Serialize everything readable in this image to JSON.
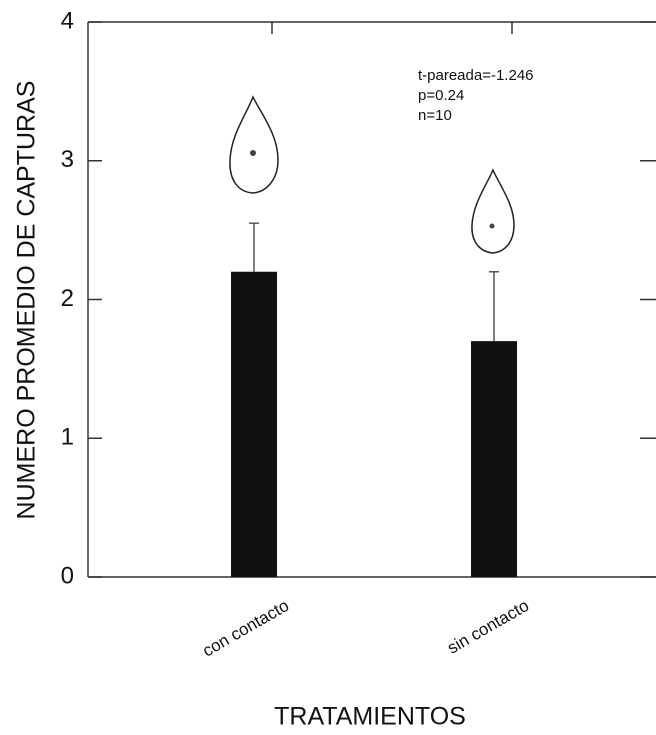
{
  "chart_data": {
    "type": "bar",
    "categories": [
      "con contacto",
      "sin contacto"
    ],
    "values": [
      2.2,
      1.7
    ],
    "errors": [
      0.35,
      0.5
    ],
    "color": "#111111",
    "ylim": [
      0,
      4
    ],
    "yticks": [
      0,
      1,
      2,
      3,
      4
    ],
    "xlabel": "TRATAMIENTOS",
    "ylabel": "NUMERO PROMEDIO DE CAPTURAS",
    "annotations": [
      "t-pareada=-1.246",
      "p=0.24",
      "n=10"
    ]
  }
}
